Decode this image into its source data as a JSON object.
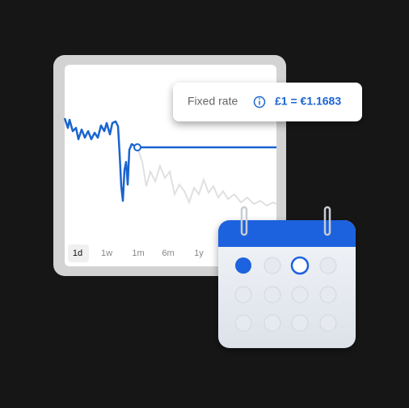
{
  "tooltip": {
    "label": "Fixed rate",
    "rate": "£1 = €1.1683"
  },
  "tabs": [
    "1d",
    "1w",
    "1m",
    "6m",
    "1y"
  ]
}
